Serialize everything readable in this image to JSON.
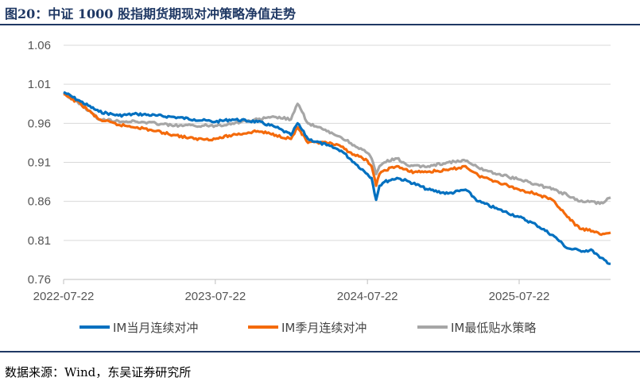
{
  "header": {
    "title": "图20：中证 1000 股指期货期现对冲策略净值走势"
  },
  "footer": {
    "source": "数据来源：Wind，东吴证券研究所"
  },
  "chart_data": {
    "type": "line",
    "title": "图20：中证 1000 股指期货期现对冲策略净值走势",
    "xlabel": "",
    "ylabel": "",
    "x_range": [
      "2022-07-22",
      "2026-02-27"
    ],
    "x_ticks": [
      "2022-07-22",
      "2023-07-22",
      "2024-07-22",
      "2025-07-22"
    ],
    "ylim": [
      0.76,
      1.06
    ],
    "y_ticks": [
      "1.06",
      "1.01",
      "0.96",
      "0.91",
      "0.86",
      "0.81",
      "0.76"
    ],
    "grid": "horizontal",
    "legend_position": "bottom",
    "series": [
      {
        "name": "IM当月连续对冲",
        "color": "#0070C0",
        "points": [
          [
            "2022-07-22",
            1.0
          ],
          [
            "2022-09-01",
            0.988
          ],
          [
            "2022-10-15",
            0.975
          ],
          [
            "2022-12-01",
            0.97
          ],
          [
            "2023-01-15",
            0.972
          ],
          [
            "2023-03-01",
            0.97
          ],
          [
            "2023-04-15",
            0.968
          ],
          [
            "2023-06-01",
            0.965
          ],
          [
            "2023-07-22",
            0.962
          ],
          [
            "2023-09-01",
            0.965
          ],
          [
            "2023-11-01",
            0.962
          ],
          [
            "2023-12-15",
            0.955
          ],
          [
            "2024-01-20",
            0.945
          ],
          [
            "2024-02-05",
            0.96
          ],
          [
            "2024-03-01",
            0.94
          ],
          [
            "2024-04-15",
            0.932
          ],
          [
            "2024-05-20",
            0.925
          ],
          [
            "2024-06-20",
            0.91
          ],
          [
            "2024-07-22",
            0.895
          ],
          [
            "2024-08-01",
            0.89
          ],
          [
            "2024-08-12",
            0.862
          ],
          [
            "2024-08-20",
            0.88
          ],
          [
            "2024-09-01",
            0.885
          ],
          [
            "2024-10-01",
            0.89
          ],
          [
            "2024-11-01",
            0.885
          ],
          [
            "2024-12-15",
            0.875
          ],
          [
            "2025-02-01",
            0.87
          ],
          [
            "2025-03-15",
            0.875
          ],
          [
            "2025-04-15",
            0.86
          ],
          [
            "2025-06-01",
            0.85
          ],
          [
            "2025-07-22",
            0.84
          ],
          [
            "2025-09-01",
            0.83
          ],
          [
            "2025-10-15",
            0.815
          ],
          [
            "2025-11-15",
            0.8
          ],
          [
            "2025-12-15",
            0.797
          ],
          [
            "2026-01-15",
            0.797
          ],
          [
            "2026-02-01",
            0.788
          ],
          [
            "2026-02-27",
            0.78
          ]
        ]
      },
      {
        "name": "IM季月连续对冲",
        "color": "#F46A0B",
        "points": [
          [
            "2022-07-22",
            0.997
          ],
          [
            "2022-09-01",
            0.985
          ],
          [
            "2022-10-15",
            0.965
          ],
          [
            "2022-12-01",
            0.958
          ],
          [
            "2023-01-15",
            0.955
          ],
          [
            "2023-03-01",
            0.95
          ],
          [
            "2023-04-15",
            0.945
          ],
          [
            "2023-06-01",
            0.94
          ],
          [
            "2023-07-22",
            0.94
          ],
          [
            "2023-09-01",
            0.945
          ],
          [
            "2023-11-01",
            0.95
          ],
          [
            "2023-12-15",
            0.945
          ],
          [
            "2024-01-20",
            0.94
          ],
          [
            "2024-02-05",
            0.955
          ],
          [
            "2024-03-01",
            0.935
          ],
          [
            "2024-04-15",
            0.935
          ],
          [
            "2024-05-20",
            0.93
          ],
          [
            "2024-06-20",
            0.92
          ],
          [
            "2024-07-22",
            0.912
          ],
          [
            "2024-08-01",
            0.905
          ],
          [
            "2024-08-12",
            0.88
          ],
          [
            "2024-08-20",
            0.895
          ],
          [
            "2024-09-01",
            0.9
          ],
          [
            "2024-10-01",
            0.905
          ],
          [
            "2024-11-01",
            0.898
          ],
          [
            "2024-12-15",
            0.898
          ],
          [
            "2025-02-01",
            0.9
          ],
          [
            "2025-03-15",
            0.905
          ],
          [
            "2025-04-15",
            0.893
          ],
          [
            "2025-06-01",
            0.885
          ],
          [
            "2025-07-22",
            0.875
          ],
          [
            "2025-09-01",
            0.87
          ],
          [
            "2025-10-15",
            0.86
          ],
          [
            "2025-11-15",
            0.84
          ],
          [
            "2025-12-15",
            0.825
          ],
          [
            "2026-01-15",
            0.822
          ],
          [
            "2026-02-01",
            0.818
          ],
          [
            "2026-02-27",
            0.82
          ]
        ]
      },
      {
        "name": "IM最低贴水策略",
        "color": "#A6A6A6",
        "points": [
          [
            "2022-07-22",
            0.998
          ],
          [
            "2022-09-01",
            0.985
          ],
          [
            "2022-10-15",
            0.965
          ],
          [
            "2022-12-01",
            0.963
          ],
          [
            "2023-01-15",
            0.962
          ],
          [
            "2023-03-01",
            0.96
          ],
          [
            "2023-04-15",
            0.957
          ],
          [
            "2023-06-01",
            0.957
          ],
          [
            "2023-07-22",
            0.957
          ],
          [
            "2023-09-01",
            0.96
          ],
          [
            "2023-11-01",
            0.965
          ],
          [
            "2023-12-15",
            0.968
          ],
          [
            "2024-01-20",
            0.965
          ],
          [
            "2024-02-05",
            0.985
          ],
          [
            "2024-03-01",
            0.96
          ],
          [
            "2024-04-15",
            0.95
          ],
          [
            "2024-05-20",
            0.942
          ],
          [
            "2024-06-20",
            0.932
          ],
          [
            "2024-07-22",
            0.922
          ],
          [
            "2024-08-01",
            0.915
          ],
          [
            "2024-08-12",
            0.895
          ],
          [
            "2024-08-20",
            0.905
          ],
          [
            "2024-09-01",
            0.91
          ],
          [
            "2024-10-01",
            0.915
          ],
          [
            "2024-11-01",
            0.905
          ],
          [
            "2024-12-15",
            0.905
          ],
          [
            "2025-02-01",
            0.91
          ],
          [
            "2025-03-15",
            0.912
          ],
          [
            "2025-04-15",
            0.903
          ],
          [
            "2025-06-01",
            0.895
          ],
          [
            "2025-07-22",
            0.888
          ],
          [
            "2025-09-01",
            0.882
          ],
          [
            "2025-10-15",
            0.875
          ],
          [
            "2025-11-15",
            0.868
          ],
          [
            "2025-12-15",
            0.86
          ],
          [
            "2026-01-15",
            0.86
          ],
          [
            "2026-02-01",
            0.857
          ],
          [
            "2026-02-27",
            0.865
          ]
        ]
      }
    ]
  }
}
